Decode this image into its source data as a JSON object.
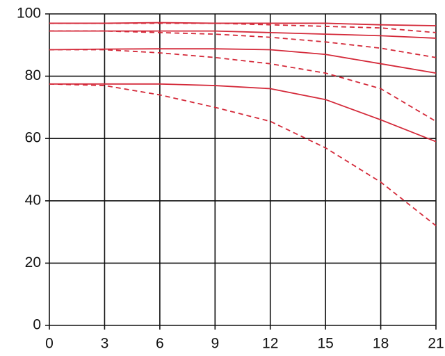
{
  "chart_data": {
    "type": "line",
    "x": [
      0,
      3,
      6,
      9,
      12,
      15,
      18,
      21
    ],
    "series": [
      {
        "color": "#d42a3a",
        "dash": false,
        "values": [
          97,
          97,
          97.2,
          97,
          97,
          97,
          96.5,
          96.2
        ]
      },
      {
        "color": "#d42a3a",
        "dash": true,
        "values": [
          97,
          97,
          97,
          97,
          96.5,
          96,
          95.5,
          94
        ]
      },
      {
        "color": "#d42a3a",
        "dash": false,
        "values": [
          94.5,
          94.5,
          94.5,
          94.5,
          94,
          93.5,
          93,
          92.2
        ]
      },
      {
        "color": "#d42a3a",
        "dash": true,
        "values": [
          94.5,
          94.5,
          94,
          93.5,
          92.5,
          91,
          89,
          86
        ]
      },
      {
        "color": "#d42a3a",
        "dash": false,
        "values": [
          88.5,
          88.7,
          88.8,
          88.8,
          88.5,
          87,
          84,
          81
        ]
      },
      {
        "color": "#d42a3a",
        "dash": true,
        "values": [
          88.5,
          88.5,
          87.5,
          86,
          84,
          81,
          76,
          65.5
        ]
      },
      {
        "color": "#d42a3a",
        "dash": false,
        "values": [
          77.5,
          77.5,
          77.5,
          77,
          76,
          72.5,
          66,
          59
        ]
      },
      {
        "color": "#d42a3a",
        "dash": true,
        "values": [
          77.5,
          77,
          74,
          70,
          65.5,
          57,
          46,
          32
        ]
      }
    ],
    "xlim": [
      0,
      21
    ],
    "xticks": [
      0,
      3,
      6,
      9,
      12,
      15,
      18,
      21
    ],
    "ylim": [
      0,
      100
    ],
    "yticks": [
      0,
      20,
      40,
      60,
      80,
      100
    ],
    "grid": true
  }
}
